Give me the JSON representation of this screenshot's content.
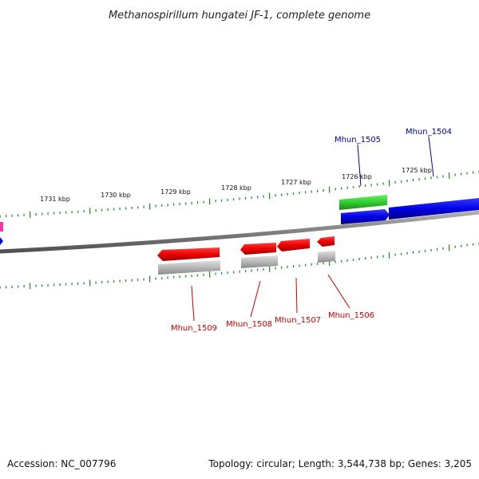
{
  "title": "Methanospirillum hungatei JF-1, complete genome",
  "footer": {
    "accession": "Accession: NC_007796",
    "topology": "Topology: circular; Length: 3,544,738 bp; Genes: 3,205"
  },
  "colors": {
    "backbone": "#808080",
    "forward_cds": "#0000e6",
    "reverse_cds": "#ee0000",
    "rna": "#33cc33",
    "gene_gray": "#b8b8b8",
    "tick": "#2e8b2e",
    "forward_label": "#000099",
    "reverse_label": "#cc0000",
    "edge_feature": "#ff33aa"
  },
  "ruler_labels": [
    "1731 kbp",
    "1730 kbp",
    "1729 kbp",
    "1728 kbp",
    "1727 kbp",
    "1726 kbp",
    "1725 kbp"
  ],
  "gene_labels": {
    "forward": [
      "Mhun_1505",
      "Mhun_1504"
    ],
    "reverse": [
      "Mhun_1509",
      "Mhun_1508",
      "Mhun_1507",
      "Mhun_1506"
    ]
  }
}
